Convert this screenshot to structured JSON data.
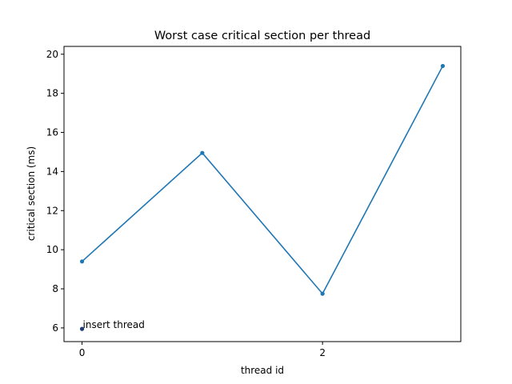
{
  "chart_data": {
    "type": "line",
    "title": "Worst case critical section per thread",
    "xlabel": "thread id",
    "ylabel": "critical section (ms)",
    "xlim": [
      -0.15,
      3.15
    ],
    "ylim": [
      5.3,
      20.4
    ],
    "xticks": [
      0,
      2
    ],
    "yticks": [
      6,
      8,
      10,
      12,
      14,
      16,
      18,
      20
    ],
    "grid": false,
    "series": [
      {
        "x": [
          0,
          1,
          2,
          3
        ],
        "y": [
          9.4,
          14.95,
          7.75,
          19.4
        ],
        "color": "#1f77b4",
        "marker": "dot"
      }
    ],
    "annotations": [
      {
        "x": 0,
        "y": 5.95,
        "text": "insert thread",
        "color": "#1f3b73"
      }
    ]
  }
}
